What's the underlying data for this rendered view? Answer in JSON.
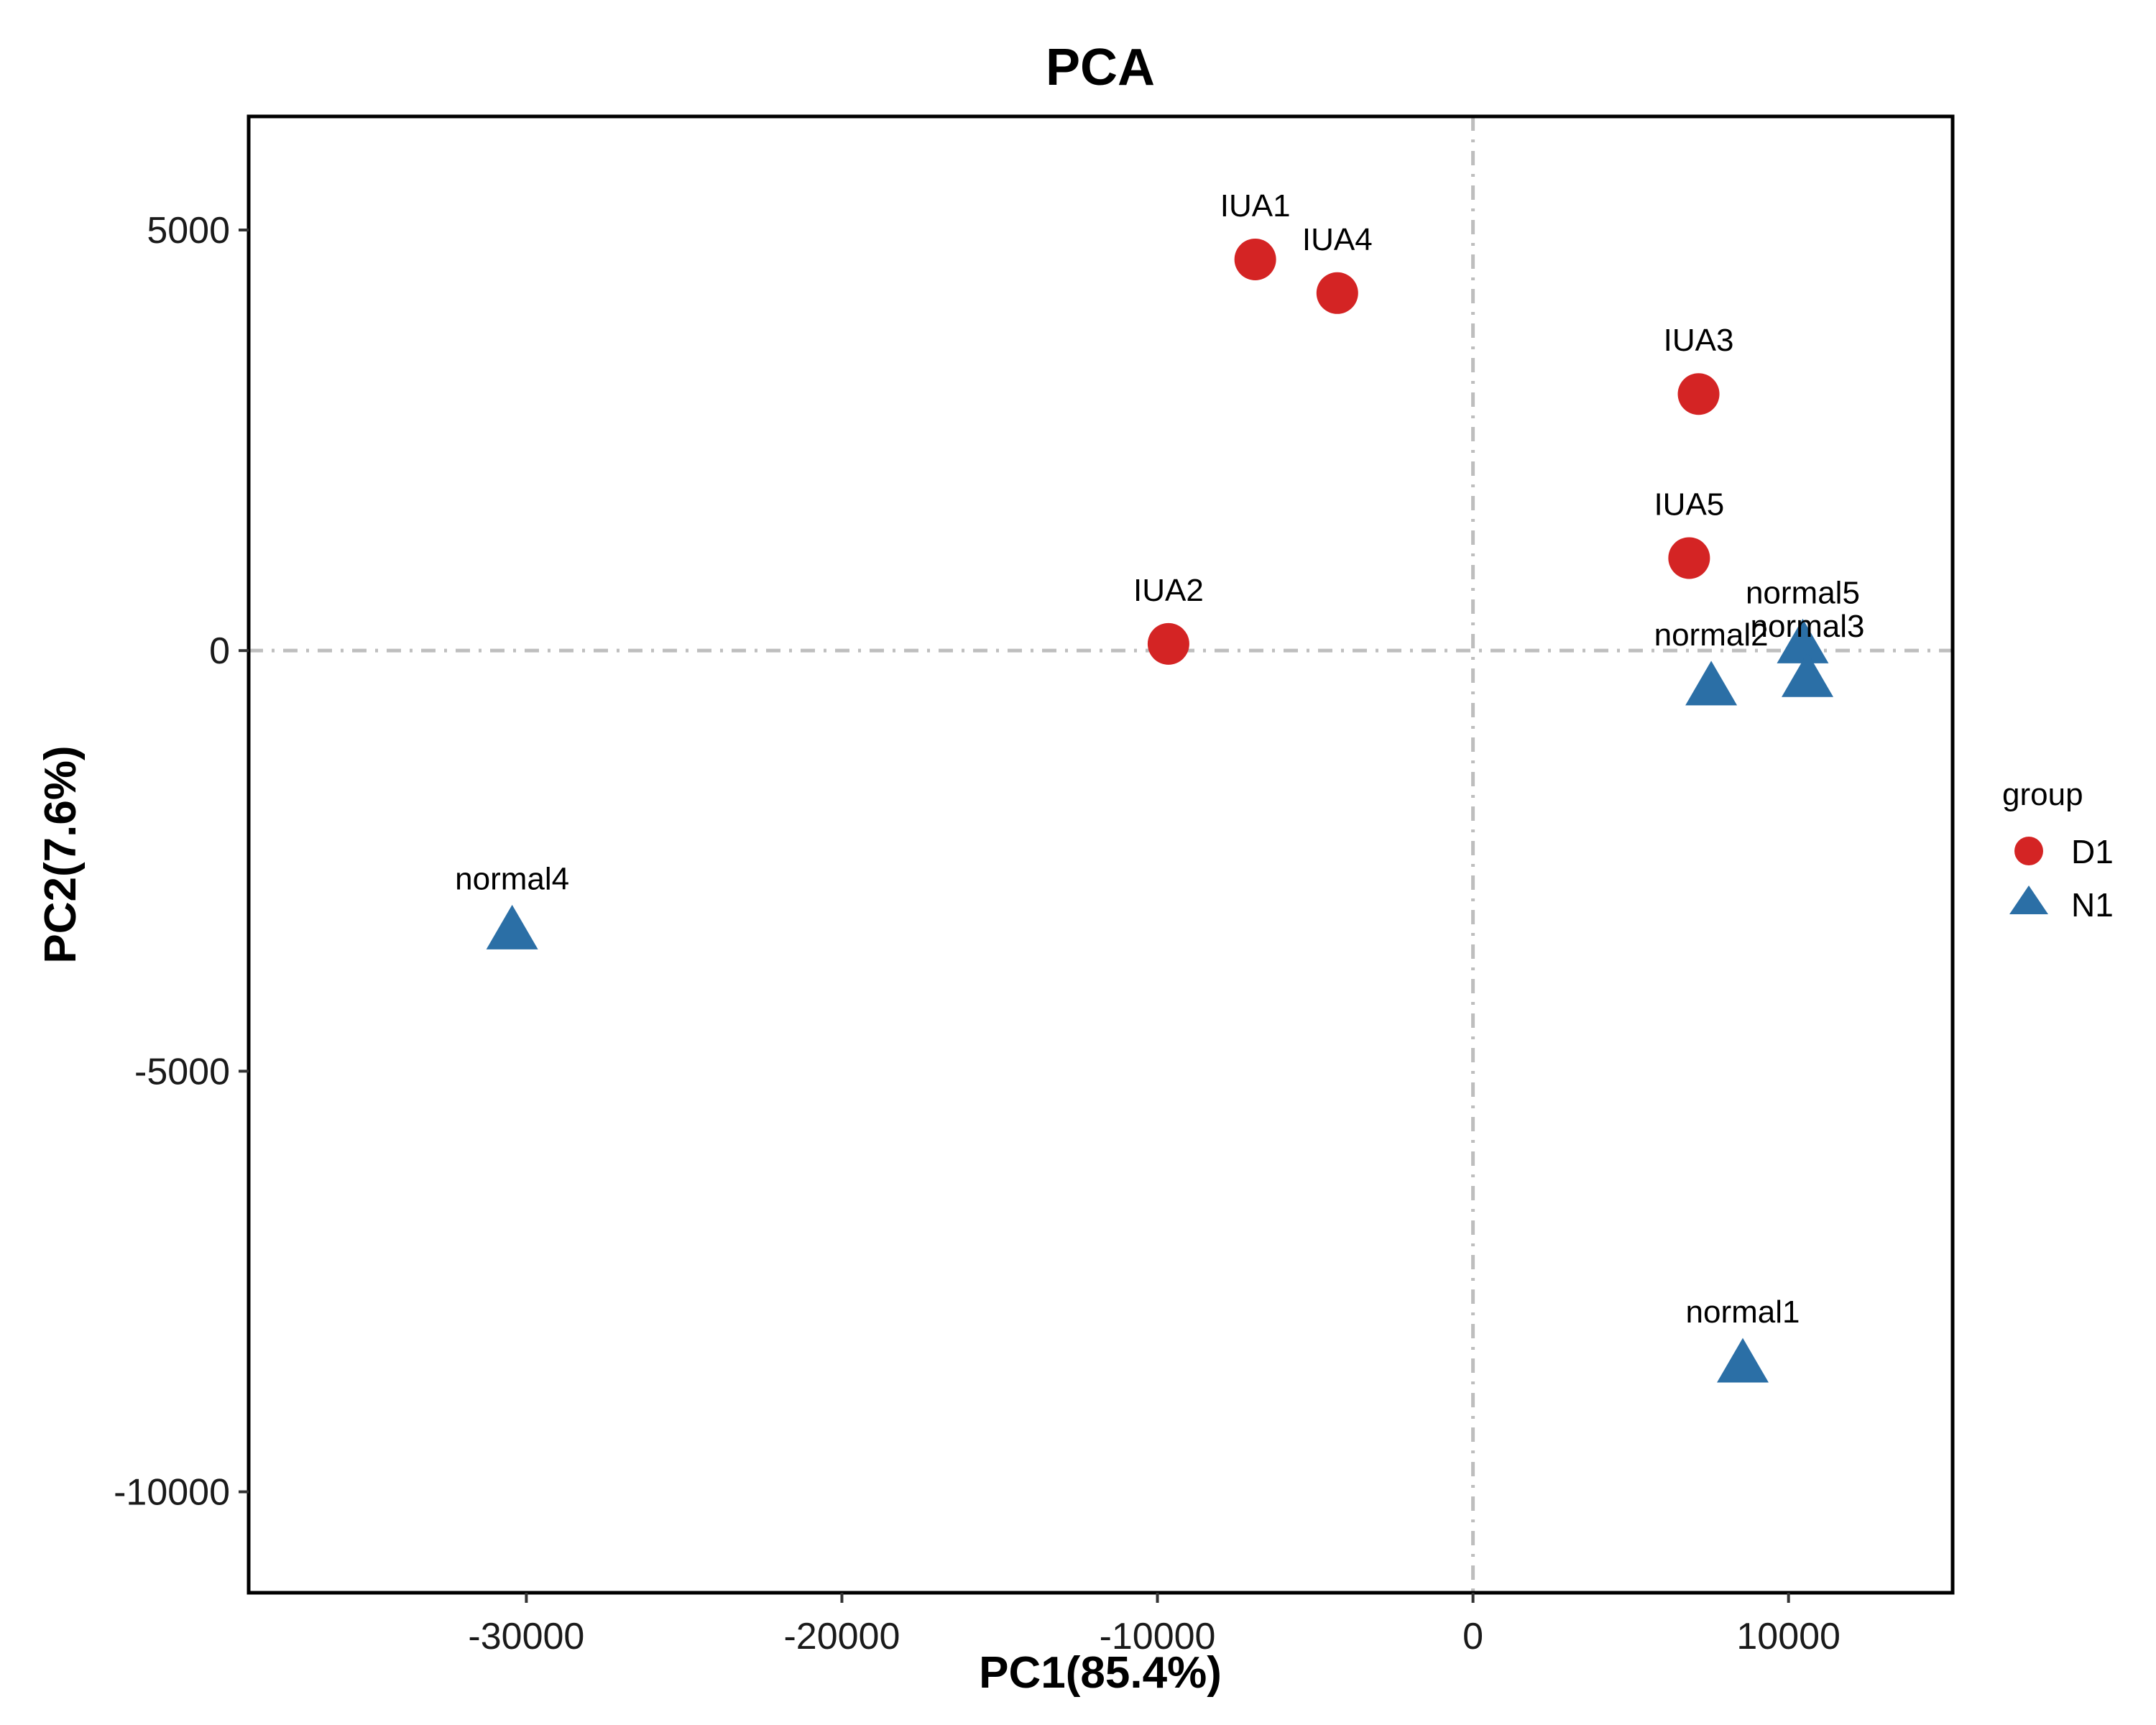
{
  "chart_data": {
    "type": "scatter",
    "title": "PCA",
    "xlabel": "PC1(85.4%)",
    "ylabel": "PC2(7.6%)",
    "xlim": [
      -38800,
      15200
    ],
    "ylim": [
      -11200,
      6350
    ],
    "xticks": [
      -30000,
      -20000,
      -10000,
      0,
      10000
    ],
    "yticks": [
      5000,
      0,
      -5000,
      -10000
    ],
    "xtick_labels": [
      "-30000",
      "-20000",
      "-10000",
      "0",
      "10000"
    ],
    "ytick_labels": [
      "5000",
      "0",
      "-5000",
      "-10000"
    ],
    "reference_lines": {
      "x": 0,
      "y": 0,
      "style": "dot-dash",
      "color": "#bebebe"
    },
    "legend": {
      "title": "group",
      "position": "right",
      "entries": [
        {
          "label": "D1",
          "shape": "circle",
          "color": "#d42424"
        },
        {
          "label": "N1",
          "shape": "triangle",
          "color": "#2b6fa6"
        }
      ]
    },
    "series": [
      {
        "name": "D1",
        "shape": "circle",
        "color": "#d42424",
        "points": [
          {
            "label": "IUA1",
            "x": -6900,
            "y": 4650
          },
          {
            "label": "IUA4",
            "x": -4300,
            "y": 4250
          },
          {
            "label": "IUA3",
            "x": 7150,
            "y": 3050
          },
          {
            "label": "IUA5",
            "x": 6850,
            "y": 1100
          },
          {
            "label": "IUA2",
            "x": -9650,
            "y": 80
          }
        ]
      },
      {
        "name": "N1",
        "shape": "triangle",
        "color": "#2b6fa6",
        "points": [
          {
            "label": "normal5",
            "x": 10450,
            "y": 50
          },
          {
            "label": "normal3",
            "x": 10600,
            "y": -350
          },
          {
            "label": "normal2",
            "x": 7550,
            "y": -450
          },
          {
            "label": "normal4",
            "x": -30450,
            "y": -3350
          },
          {
            "label": "normal1",
            "x": 8550,
            "y": -8500
          }
        ]
      }
    ]
  }
}
